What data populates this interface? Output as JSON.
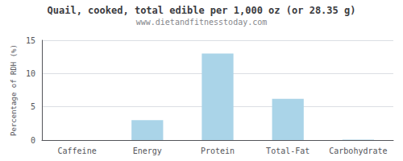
{
  "chart_data": {
    "type": "bar",
    "title": "Quail, cooked, total edible per 1,000 oz (or 28.35 g)",
    "subtitle": "www.dietandfitnesstoday.com",
    "categories": [
      "Caffeine",
      "Energy",
      "Protein",
      "Total-Fat",
      "Carbohydrate"
    ],
    "values": [
      0,
      3.0,
      13.0,
      6.2,
      0.05
    ],
    "color": "#aad4e8",
    "ylabel": "Percentage of RDH (%)",
    "ylim": [
      0,
      15
    ],
    "yticks": [
      0,
      5,
      10,
      15
    ],
    "grid": true
  }
}
